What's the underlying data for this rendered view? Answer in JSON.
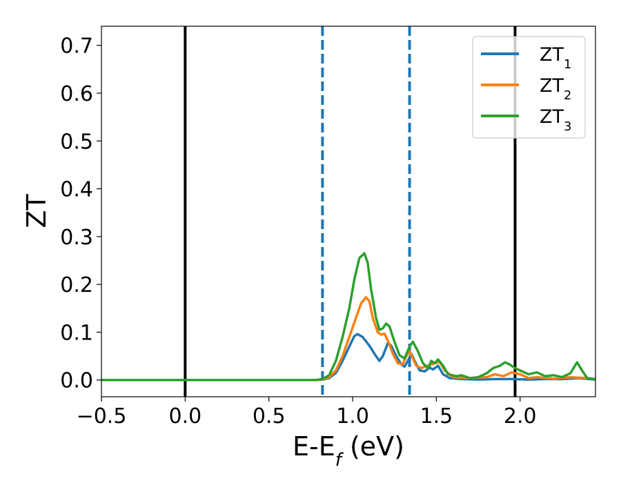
{
  "chart_data": {
    "type": "line",
    "title": "",
    "xlabel": {
      "main": "E-E",
      "sub": "f",
      "suffix": " (eV)"
    },
    "ylabel": "ZT",
    "xlim": [
      -0.5,
      2.45
    ],
    "ylim": [
      -0.035,
      0.74
    ],
    "x_ticks": [
      -0.5,
      0.0,
      0.5,
      1.0,
      1.5,
      2.0
    ],
    "x_tick_labels": [
      "−0.5",
      "0.0",
      "0.5",
      "1.0",
      "1.5",
      "2.0"
    ],
    "y_ticks": [
      0.0,
      0.1,
      0.2,
      0.3,
      0.4,
      0.5,
      0.6,
      0.7
    ],
    "y_tick_labels": [
      "0.0",
      "0.1",
      "0.2",
      "0.3",
      "0.4",
      "0.5",
      "0.6",
      "0.7"
    ],
    "grid": false,
    "legend_position": "top-right",
    "vertical_lines": [
      {
        "x": 0.0,
        "style": "solid",
        "color": "#000000"
      },
      {
        "x": 1.97,
        "style": "solid",
        "color": "#000000"
      },
      {
        "x": 0.82,
        "style": "dashed",
        "color": "#1f77b4"
      },
      {
        "x": 1.34,
        "style": "dashed",
        "color": "#1f77b4"
      }
    ],
    "series": [
      {
        "name": "ZT",
        "name_sub": "1",
        "color": "#1f77b4",
        "points": [
          [
            -0.5,
            0
          ],
          [
            0.78,
            0
          ],
          [
            0.82,
            0.001
          ],
          [
            0.86,
            0.004
          ],
          [
            0.9,
            0.015
          ],
          [
            0.94,
            0.04
          ],
          [
            0.98,
            0.07
          ],
          [
            1.01,
            0.092
          ],
          [
            1.03,
            0.096
          ],
          [
            1.06,
            0.09
          ],
          [
            1.1,
            0.072
          ],
          [
            1.13,
            0.055
          ],
          [
            1.16,
            0.04
          ],
          [
            1.18,
            0.05
          ],
          [
            1.2,
            0.068
          ],
          [
            1.21,
            0.077
          ],
          [
            1.23,
            0.072
          ],
          [
            1.26,
            0.05
          ],
          [
            1.29,
            0.033
          ],
          [
            1.31,
            0.028
          ],
          [
            1.33,
            0.04
          ],
          [
            1.35,
            0.055
          ],
          [
            1.37,
            0.04
          ],
          [
            1.4,
            0.02
          ],
          [
            1.43,
            0.018
          ],
          [
            1.46,
            0.026
          ],
          [
            1.48,
            0.022
          ],
          [
            1.51,
            0.03
          ],
          [
            1.54,
            0.012
          ],
          [
            1.58,
            0.004
          ],
          [
            1.65,
            0.002
          ],
          [
            1.75,
            0.001
          ],
          [
            1.85,
            0.002
          ],
          [
            1.95,
            0.002
          ],
          [
            2.05,
            0.001
          ],
          [
            2.15,
            0.002
          ],
          [
            2.25,
            0.002
          ],
          [
            2.35,
            0.004
          ],
          [
            2.45,
            0.001
          ]
        ]
      },
      {
        "name": "ZT",
        "name_sub": "2",
        "color": "#ff7f0e",
        "points": [
          [
            -0.5,
            0
          ],
          [
            0.78,
            0
          ],
          [
            0.82,
            0.001
          ],
          [
            0.86,
            0.006
          ],
          [
            0.9,
            0.02
          ],
          [
            0.94,
            0.05
          ],
          [
            0.98,
            0.09
          ],
          [
            1.02,
            0.13
          ],
          [
            1.05,
            0.16
          ],
          [
            1.08,
            0.173
          ],
          [
            1.1,
            0.165
          ],
          [
            1.12,
            0.13
          ],
          [
            1.15,
            0.1
          ],
          [
            1.17,
            0.095
          ],
          [
            1.19,
            0.097
          ],
          [
            1.21,
            0.083
          ],
          [
            1.24,
            0.055
          ],
          [
            1.27,
            0.035
          ],
          [
            1.3,
            0.033
          ],
          [
            1.32,
            0.05
          ],
          [
            1.34,
            0.06
          ],
          [
            1.36,
            0.045
          ],
          [
            1.38,
            0.03
          ],
          [
            1.41,
            0.025
          ],
          [
            1.45,
            0.03
          ],
          [
            1.49,
            0.035
          ],
          [
            1.52,
            0.038
          ],
          [
            1.55,
            0.02
          ],
          [
            1.6,
            0.006
          ],
          [
            1.7,
            0.004
          ],
          [
            1.8,
            0.006
          ],
          [
            1.85,
            0.012
          ],
          [
            1.9,
            0.008
          ],
          [
            1.95,
            0.016
          ],
          [
            2.0,
            0.012
          ],
          [
            2.05,
            0.004
          ],
          [
            2.1,
            0.006
          ],
          [
            2.2,
            0.003
          ],
          [
            2.3,
            0.006
          ],
          [
            2.4,
            0.004
          ],
          [
            2.45,
            0.002
          ]
        ]
      },
      {
        "name": "ZT",
        "name_sub": "3",
        "color": "#2ca02c",
        "points": [
          [
            -0.5,
            0
          ],
          [
            0.78,
            0
          ],
          [
            0.82,
            0.002
          ],
          [
            0.86,
            0.01
          ],
          [
            0.9,
            0.04
          ],
          [
            0.94,
            0.09
          ],
          [
            0.98,
            0.15
          ],
          [
            1.01,
            0.21
          ],
          [
            1.04,
            0.255
          ],
          [
            1.07,
            0.265
          ],
          [
            1.09,
            0.245
          ],
          [
            1.11,
            0.19
          ],
          [
            1.14,
            0.13
          ],
          [
            1.16,
            0.105
          ],
          [
            1.18,
            0.108
          ],
          [
            1.2,
            0.118
          ],
          [
            1.22,
            0.112
          ],
          [
            1.25,
            0.08
          ],
          [
            1.28,
            0.052
          ],
          [
            1.31,
            0.045
          ],
          [
            1.34,
            0.07
          ],
          [
            1.36,
            0.08
          ],
          [
            1.39,
            0.06
          ],
          [
            1.42,
            0.035
          ],
          [
            1.45,
            0.025
          ],
          [
            1.47,
            0.04
          ],
          [
            1.49,
            0.035
          ],
          [
            1.51,
            0.043
          ],
          [
            1.54,
            0.03
          ],
          [
            1.57,
            0.012
          ],
          [
            1.62,
            0.008
          ],
          [
            1.65,
            0.01
          ],
          [
            1.7,
            0.004
          ],
          [
            1.75,
            0.006
          ],
          [
            1.8,
            0.014
          ],
          [
            1.84,
            0.025
          ],
          [
            1.88,
            0.03
          ],
          [
            1.91,
            0.037
          ],
          [
            1.94,
            0.032
          ],
          [
            1.97,
            0.025
          ],
          [
            2.0,
            0.02
          ],
          [
            2.05,
            0.012
          ],
          [
            2.1,
            0.016
          ],
          [
            2.15,
            0.008
          ],
          [
            2.2,
            0.01
          ],
          [
            2.25,
            0.006
          ],
          [
            2.3,
            0.014
          ],
          [
            2.34,
            0.037
          ],
          [
            2.37,
            0.02
          ],
          [
            2.4,
            0.004
          ],
          [
            2.45,
            0.002
          ]
        ]
      }
    ]
  }
}
